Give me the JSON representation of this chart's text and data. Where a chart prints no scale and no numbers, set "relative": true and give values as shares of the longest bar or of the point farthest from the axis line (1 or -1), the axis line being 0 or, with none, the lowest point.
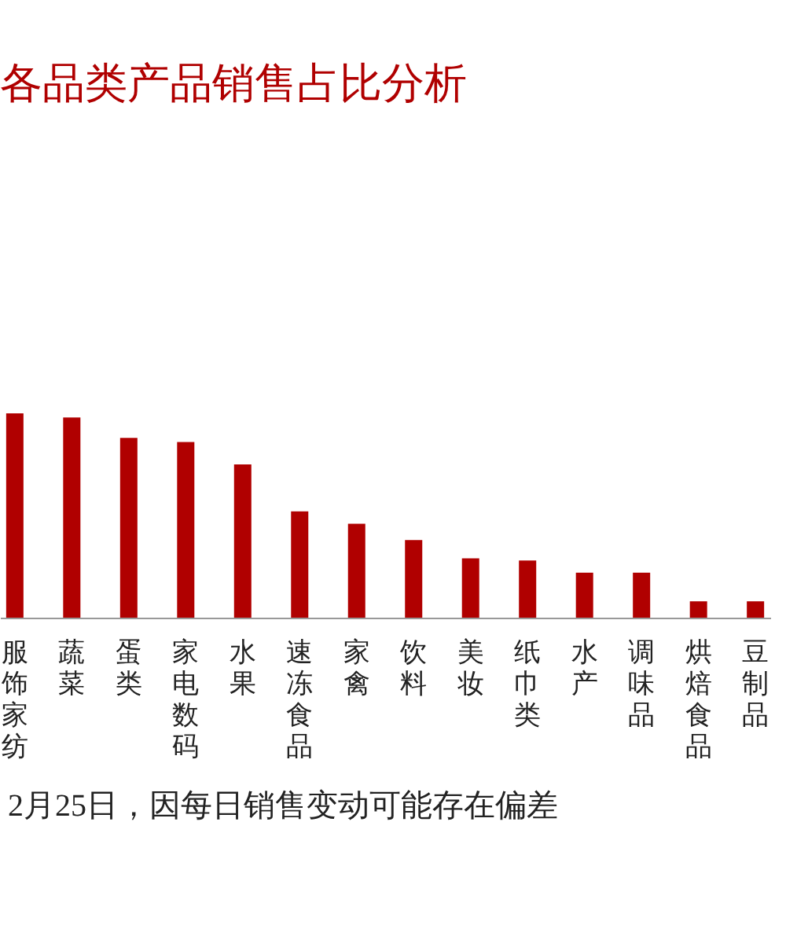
{
  "chart_data": {
    "type": "bar",
    "title": "各品类产品销售占比分析",
    "relative": true,
    "color": "#b00000",
    "categories": [
      "服饰家纺",
      "蔬菜",
      "蛋类",
      "家电数码",
      "水果",
      "速冻食品",
      "家禽",
      "饮料",
      "美妆",
      "纸巾类",
      "水产",
      "调味品",
      "烘焙食品",
      "豆制品"
    ],
    "values": [
      1,
      0.98,
      0.88,
      0.86,
      0.75,
      0.52,
      0.46,
      0.38,
      0.29,
      0.28,
      0.22,
      0.22,
      0.08,
      0.08
    ],
    "annotations": [
      "2月25日，因每日销售变动可能存在偏差"
    ]
  }
}
